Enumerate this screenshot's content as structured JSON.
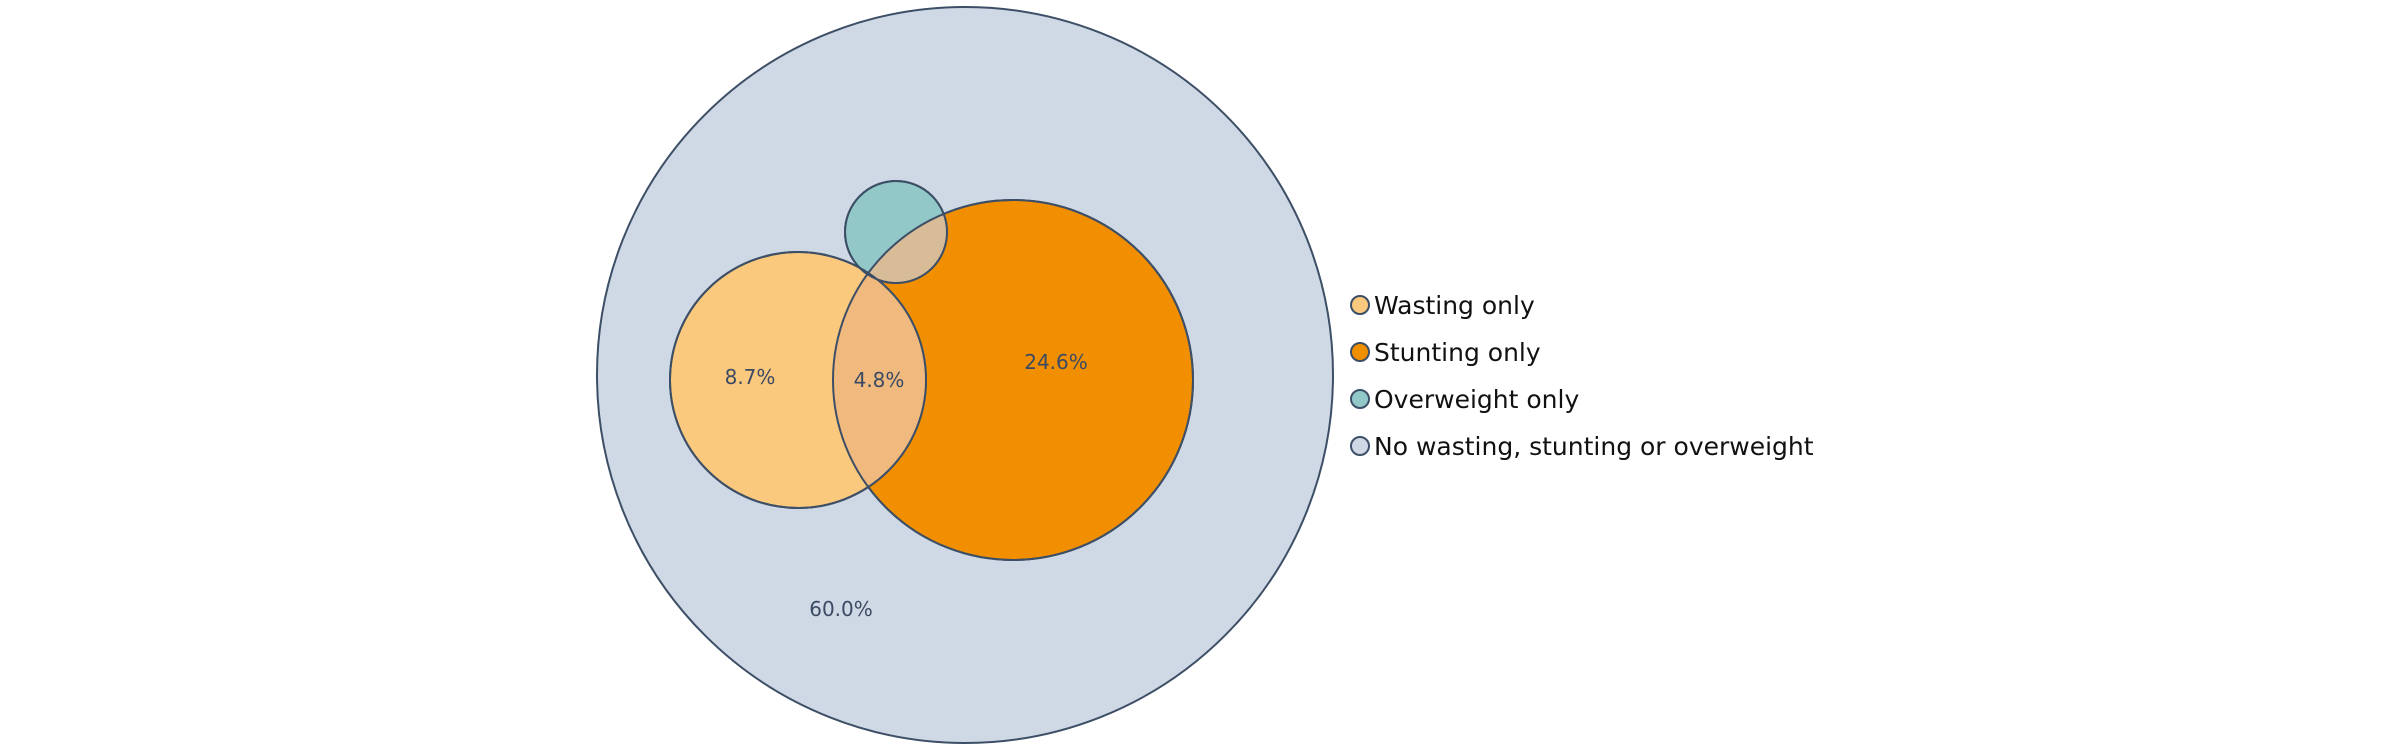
{
  "chart_data": {
    "type": "venn",
    "outline_color": "#3d4f66",
    "sets": [
      {
        "name": "Wasting only",
        "color": "#fbc97d"
      },
      {
        "name": "Stunting only",
        "color": "#f28f00"
      },
      {
        "name": "Overweight only",
        "color": "#92c8c8"
      },
      {
        "name": "No wasting, stunting or overweight",
        "color": "#cfd9e5"
      }
    ],
    "regions": [
      {
        "label": "8.7%",
        "value": 8.7,
        "sets": [
          "Wasting"
        ]
      },
      {
        "label": "4.8%",
        "value": 4.8,
        "sets": [
          "Wasting",
          "Stunting"
        ]
      },
      {
        "label": "24.6%",
        "value": 24.6,
        "sets": [
          "Stunting"
        ]
      },
      {
        "label": "60.0%",
        "value": 60.0,
        "sets": [
          "None"
        ]
      }
    ],
    "overlap_colors": {
      "wasting_stunting": "#f0b97e",
      "overweight_stunting": "#d8bc98"
    },
    "legend_placement": "right"
  }
}
